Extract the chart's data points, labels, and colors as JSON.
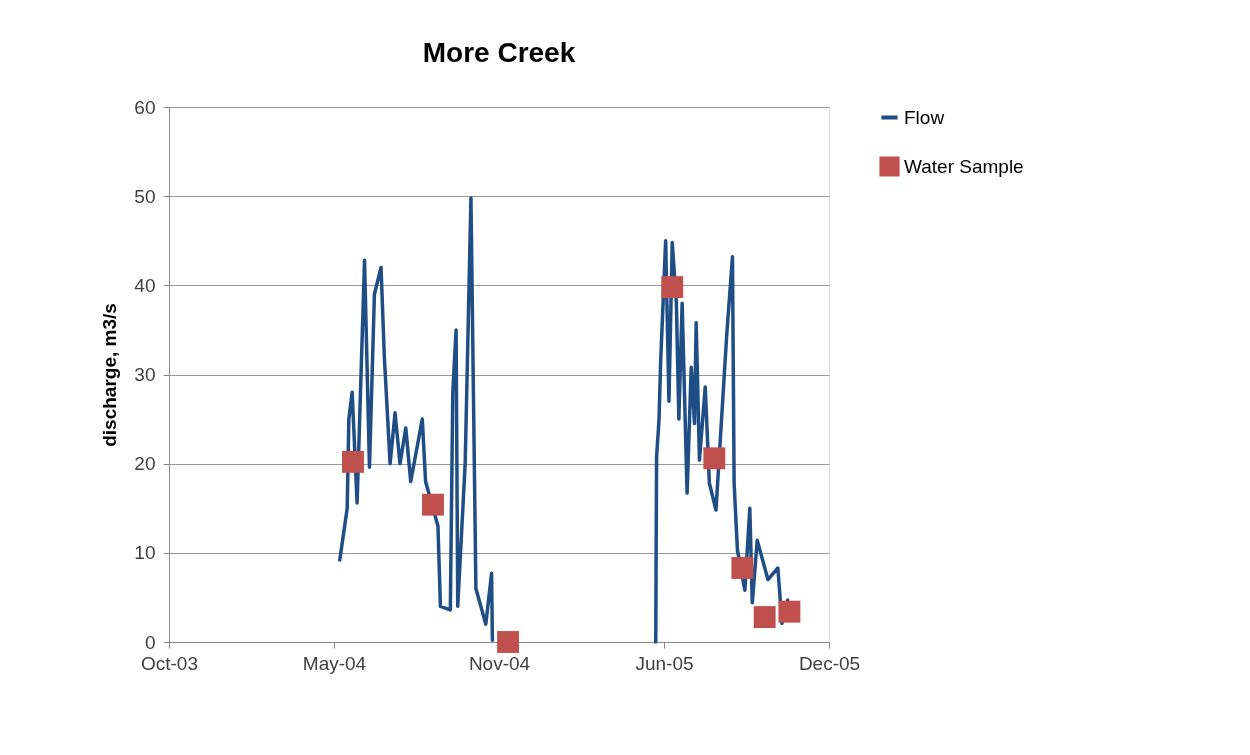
{
  "chart_data": {
    "type": "line",
    "title": "More Creek",
    "ylabel": "discharge, m3/s",
    "xlim": [
      "2003-10-20",
      "2005-12-28"
    ],
    "xticks": [
      {
        "value": "2003-10-20",
        "label": "Oct-03"
      },
      {
        "value": "2004-05-07",
        "label": "May-04"
      },
      {
        "value": "2004-11-23",
        "label": "Nov-04"
      },
      {
        "value": "2005-06-11",
        "label": "Jun-05"
      },
      {
        "value": "2005-12-28",
        "label": "Dec-05"
      }
    ],
    "ylim": [
      0,
      60
    ],
    "yticks": [
      0,
      10,
      20,
      30,
      40,
      50,
      60
    ],
    "grid": "y",
    "legend": "right",
    "series": [
      {
        "name": "Flow",
        "color": "#1f4e87",
        "marker": "none",
        "line_style": "solid",
        "x": [
          "2004-05-14",
          "2004-05-23",
          "2004-05-25",
          "2004-05-29",
          "2004-06-04",
          "2004-06-13",
          "2004-06-19",
          "2004-06-25",
          "2004-07-03",
          "2004-07-07",
          "2004-07-14",
          "2004-07-20",
          "2004-07-26",
          "2004-08-02",
          "2004-08-08",
          "2004-08-22",
          "2004-08-26",
          "2004-09-10",
          "2004-09-13",
          "2004-09-25",
          "2004-09-28",
          "2004-10-02",
          "2004-10-04",
          "2004-10-13",
          "2004-10-20",
          "2004-10-26",
          "2004-11-07",
          "2004-11-14",
          "2004-11-15",
          "2005-01-01",
          "2005-06-01",
          "2005-06-02",
          "2005-06-05",
          "2005-06-07",
          "2005-06-13",
          "2005-06-17",
          "2005-06-21",
          "2005-06-26",
          "2005-06-29",
          "2005-07-03",
          "2005-07-09",
          "2005-07-14",
          "2005-07-18",
          "2005-07-20",
          "2005-07-24",
          "2005-07-31",
          "2005-08-05",
          "2005-08-13",
          "2005-08-26",
          "2005-09-02",
          "2005-09-04",
          "2005-09-08",
          "2005-09-17",
          "2005-09-23",
          "2005-09-26",
          "2005-10-02",
          "2005-10-15",
          "2005-10-27",
          "2005-11-01",
          "2005-11-08"
        ],
        "values": [
          9.2,
          15,
          25,
          28,
          15.6,
          42.8,
          19.6,
          39,
          42,
          32,
          20,
          25.7,
          20,
          24,
          18,
          25,
          18,
          13,
          4,
          3.6,
          28,
          35,
          4,
          20,
          49.8,
          6,
          2,
          7.7,
          0.2,
          null,
          0,
          20.7,
          25,
          31.6,
          45,
          27,
          44.8,
          38,
          25,
          38,
          16.7,
          30.8,
          24.5,
          35.8,
          20.4,
          28.6,
          17.8,
          14.8,
          34.4,
          43.2,
          17.8,
          10.3,
          5.8,
          15,
          4.4,
          11.4,
          7,
          8.3,
          2.1,
          4.7
        ]
      },
      {
        "name": "Water Sample",
        "type": "scatter",
        "color": "#c0504d",
        "marker": "square",
        "x": [
          "2004-05-30",
          "2004-09-04",
          "2004-12-04",
          "2005-06-21",
          "2005-08-11",
          "2005-09-14",
          "2005-10-11",
          "2005-11-10"
        ],
        "values": [
          20.2,
          15.4,
          0,
          39.8,
          20.6,
          8.3,
          2.8,
          3.4
        ]
      }
    ]
  }
}
